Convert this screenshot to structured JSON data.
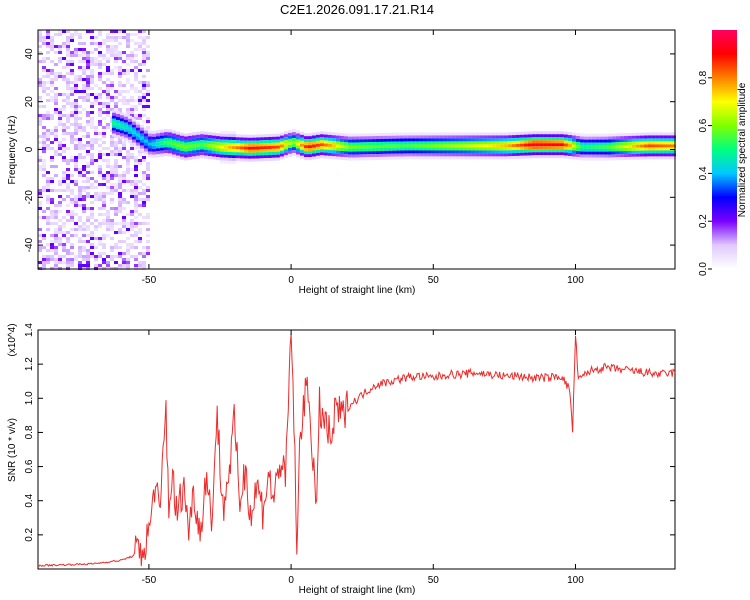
{
  "title": "C2E1.2026.091.17.21.R14",
  "chart_data": [
    {
      "type": "heatmap",
      "xlabel": "Height of straight line (km)",
      "ylabel": "Frequency (Hz)",
      "xlim": [
        -89,
        135
      ],
      "ylim": [
        -50,
        50
      ],
      "xticks": [
        -50,
        0,
        50,
        100
      ],
      "yticks": [
        -40,
        -20,
        0,
        20,
        40
      ],
      "grid": false,
      "colorbar": {
        "label": "Normalized spectral amplitude",
        "range": [
          0,
          1
        ],
        "ticks": [
          0.0,
          0.2,
          0.4,
          0.6,
          0.8
        ],
        "tick_labels": [
          "0.0",
          "0.2",
          "0.4",
          "0.6",
          "0.8"
        ],
        "colormap": [
          "#ffffff",
          "#e0c8ff",
          "#7a00ff",
          "#0000ff",
          "#00c8ff",
          "#00ff80",
          "#80ff00",
          "#ffff00",
          "#ff8000",
          "#ff0000",
          "#ff0060"
        ]
      },
      "ridge": [
        {
          "x": -63,
          "f": 11,
          "a": 0.5
        },
        {
          "x": -58,
          "f": 9,
          "a": 0.45
        },
        {
          "x": -50,
          "f": 2,
          "a": 0.4
        },
        {
          "x": -44,
          "f": 3,
          "a": 0.55
        },
        {
          "x": -38,
          "f": 1,
          "a": 0.6
        },
        {
          "x": -32,
          "f": 2,
          "a": 0.55
        },
        {
          "x": -25,
          "f": 1,
          "a": 0.7
        },
        {
          "x": -15,
          "f": 0.5,
          "a": 0.9
        },
        {
          "x": -5,
          "f": 1,
          "a": 0.85
        },
        {
          "x": 0,
          "f": 3,
          "a": 0.6
        },
        {
          "x": 5,
          "f": 1,
          "a": 0.9
        },
        {
          "x": 10,
          "f": 2,
          "a": 0.85
        },
        {
          "x": 20,
          "f": 1,
          "a": 0.6
        },
        {
          "x": 40,
          "f": 1.5,
          "a": 0.55
        },
        {
          "x": 60,
          "f": 1.5,
          "a": 0.65
        },
        {
          "x": 75,
          "f": 1.5,
          "a": 0.75
        },
        {
          "x": 85,
          "f": 2,
          "a": 0.95
        },
        {
          "x": 95,
          "f": 2,
          "a": 0.9
        },
        {
          "x": 102,
          "f": 1,
          "a": 0.5
        },
        {
          "x": 110,
          "f": 1,
          "a": 0.55
        },
        {
          "x": 125,
          "f": 1.5,
          "a": 0.85
        },
        {
          "x": 135,
          "f": 1.5,
          "a": 0.8
        }
      ]
    },
    {
      "type": "line",
      "xlabel": "Height of straight line (km)",
      "ylabel": "SNR (10 * v/v)",
      "y_multiplier": "(x10^4)",
      "xlim": [
        -89,
        135
      ],
      "ylim": [
        0,
        1.4
      ],
      "xticks": [
        -50,
        0,
        50,
        100
      ],
      "yticks": [
        0.2,
        0.4,
        0.6,
        0.8,
        1.0,
        1.2,
        1.4
      ],
      "ytick_labels": [
        "0.2",
        "0.4",
        "0.6",
        "0.8",
        "1.0",
        "1.2",
        "1.4"
      ],
      "color": "#ee2b2b",
      "series": [
        {
          "x": [
            -89,
            -70,
            -60,
            -55,
            -52,
            -50,
            -48,
            -46,
            -45,
            -44,
            -43,
            -42,
            -40,
            -38,
            -36,
            -34,
            -32,
            -30,
            -28,
            -26,
            -24,
            -22,
            -20,
            -18,
            -16,
            -14,
            -12,
            -10,
            -8,
            -6,
            -4,
            -2,
            -1,
            0,
            1,
            2,
            3,
            4,
            6,
            8,
            9,
            10,
            12,
            14,
            16,
            18,
            20,
            22,
            25,
            28,
            30,
            35,
            40,
            45,
            50,
            55,
            60,
            65,
            70,
            75,
            80,
            85,
            90,
            95,
            98,
            99,
            100,
            101,
            102,
            105,
            110,
            115,
            120,
            125,
            130,
            135
          ],
          "y": [
            0.02,
            0.03,
            0.05,
            0.08,
            0.12,
            0.2,
            0.5,
            0.3,
            0.7,
            0.94,
            0.35,
            0.55,
            0.3,
            0.5,
            0.25,
            0.45,
            0.2,
            0.55,
            0.3,
            0.9,
            0.35,
            0.55,
            0.85,
            0.4,
            0.6,
            0.3,
            0.5,
            0.35,
            0.55,
            0.4,
            0.65,
            0.5,
            0.95,
            1.4,
            0.9,
            0.05,
            0.7,
            0.95,
            1.05,
            0.6,
            0.3,
            0.95,
            0.85,
            0.75,
            0.95,
            0.88,
            0.95,
            0.98,
            1.02,
            1.06,
            1.08,
            1.1,
            1.12,
            1.13,
            1.12,
            1.14,
            1.14,
            1.15,
            1.14,
            1.13,
            1.13,
            1.12,
            1.12,
            1.13,
            1.05,
            0.8,
            1.38,
            1.1,
            1.12,
            1.16,
            1.18,
            1.17,
            1.16,
            1.15,
            1.14,
            1.15
          ]
        }
      ]
    }
  ]
}
